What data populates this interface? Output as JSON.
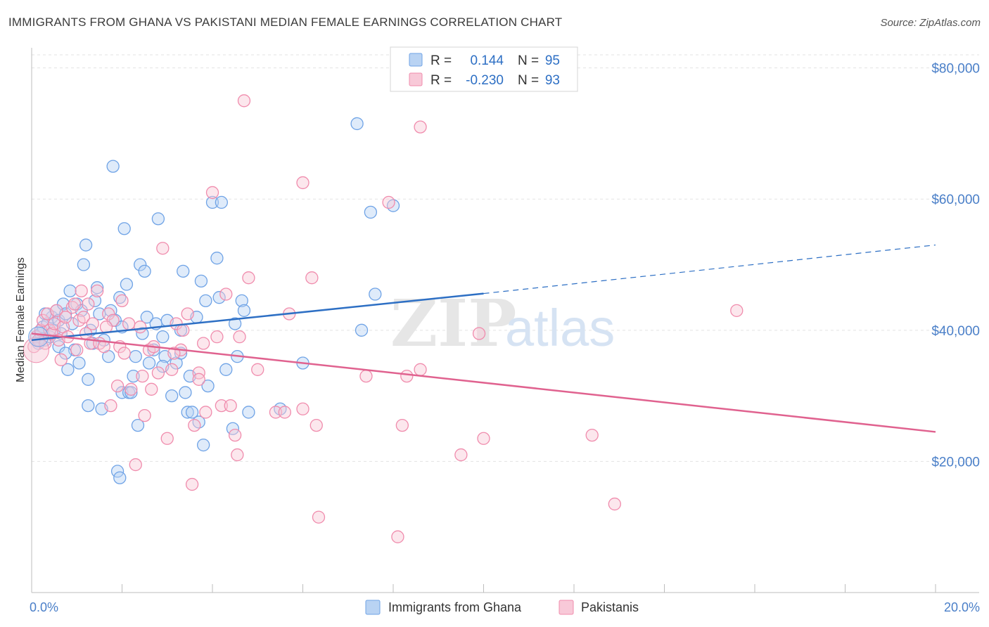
{
  "title": "IMMIGRANTS FROM GHANA VS PAKISTANI MEDIAN FEMALE EARNINGS CORRELATION CHART",
  "source": "Source: ZipAtlas.com",
  "watermark": {
    "zip": "ZIP",
    "atlas": "atlas"
  },
  "chart_data": {
    "type": "scatter",
    "ylabel": "Median Female Earnings",
    "xlim": [
      0,
      20
    ],
    "ylim": [
      0,
      82000
    ],
    "x_tick_labels": [
      "0.0%",
      "20.0%"
    ],
    "y_ticks": [
      20000,
      40000,
      60000,
      80000
    ],
    "y_tick_labels": [
      "$20,000",
      "$40,000",
      "$60,000",
      "$80,000"
    ],
    "grid": true,
    "legend_position": "top-center",
    "stats": [
      {
        "r_label": "R =",
        "r_value": "0.144",
        "n_label": "N =",
        "n_value": "95"
      },
      {
        "r_label": "R =",
        "r_value": "-0.230",
        "n_label": "N =",
        "n_value": "93"
      }
    ],
    "series": [
      {
        "name": "Immigrants from Ghana",
        "color": "#6fa3e6",
        "fill": "#b9d3f3",
        "line_color": "#2d6fc4",
        "trend": {
          "x0": 0,
          "y0": 38500,
          "x1": 10,
          "y1": 45600,
          "dash_to_x": 20,
          "dash_to_y": 53000
        },
        "points": [
          [
            0.15,
            38000
          ],
          [
            0.2,
            39500
          ],
          [
            0.25,
            40500
          ],
          [
            0.3,
            38500
          ],
          [
            0.35,
            41000
          ],
          [
            0.4,
            39000
          ],
          [
            0.45,
            42000
          ],
          [
            0.5,
            40000
          ],
          [
            0.55,
            43000
          ],
          [
            0.6,
            41500
          ],
          [
            0.65,
            39500
          ],
          [
            0.7,
            44000
          ],
          [
            0.75,
            42500
          ],
          [
            0.8,
            34000
          ],
          [
            0.85,
            46000
          ],
          [
            0.9,
            41000
          ],
          [
            0.95,
            37000
          ],
          [
            1.0,
            44000
          ],
          [
            1.05,
            35000
          ],
          [
            1.1,
            43000
          ],
          [
            1.15,
            50000
          ],
          [
            1.2,
            53000
          ],
          [
            1.25,
            32500
          ],
          [
            1.3,
            40000
          ],
          [
            1.35,
            38000
          ],
          [
            1.4,
            44500
          ],
          [
            1.5,
            42500
          ],
          [
            1.55,
            28000
          ],
          [
            1.6,
            38500
          ],
          [
            1.7,
            36000
          ],
          [
            1.75,
            43000
          ],
          [
            1.8,
            65000
          ],
          [
            1.85,
            41500
          ],
          [
            1.9,
            18500
          ],
          [
            1.95,
            17500
          ],
          [
            2.0,
            30500
          ],
          [
            2.05,
            55500
          ],
          [
            2.1,
            47000
          ],
          [
            2.15,
            30500
          ],
          [
            2.2,
            30500
          ],
          [
            2.25,
            33000
          ],
          [
            2.3,
            36000
          ],
          [
            2.35,
            25500
          ],
          [
            2.4,
            50000
          ],
          [
            2.45,
            39500
          ],
          [
            2.5,
            49000
          ],
          [
            2.55,
            42000
          ],
          [
            2.6,
            35000
          ],
          [
            2.7,
            37000
          ],
          [
            2.75,
            41000
          ],
          [
            2.8,
            57000
          ],
          [
            2.9,
            39000
          ],
          [
            2.95,
            36000
          ],
          [
            3.0,
            41500
          ],
          [
            3.1,
            30000
          ],
          [
            3.2,
            35000
          ],
          [
            3.3,
            40000
          ],
          [
            3.35,
            49000
          ],
          [
            3.4,
            30500
          ],
          [
            3.45,
            27500
          ],
          [
            3.5,
            33000
          ],
          [
            3.55,
            27500
          ],
          [
            3.65,
            42000
          ],
          [
            3.7,
            26000
          ],
          [
            3.75,
            47500
          ],
          [
            3.8,
            22500
          ],
          [
            3.85,
            44500
          ],
          [
            3.9,
            31500
          ],
          [
            4.0,
            59500
          ],
          [
            4.1,
            51000
          ],
          [
            4.15,
            45000
          ],
          [
            4.2,
            59500
          ],
          [
            4.3,
            34000
          ],
          [
            4.45,
            25000
          ],
          [
            4.5,
            41000
          ],
          [
            4.55,
            36000
          ],
          [
            4.65,
            44500
          ],
          [
            4.7,
            43000
          ],
          [
            4.8,
            27500
          ],
          [
            5.5,
            28000
          ],
          [
            6.0,
            35000
          ],
          [
            7.2,
            71500
          ],
          [
            7.3,
            40000
          ],
          [
            7.5,
            58000
          ],
          [
            7.6,
            45500
          ],
          [
            8.0,
            59000
          ],
          [
            0.3,
            42500
          ],
          [
            1.25,
            28500
          ],
          [
            2.0,
            40500
          ],
          [
            0.6,
            37500
          ],
          [
            1.45,
            46500
          ],
          [
            2.9,
            34500
          ],
          [
            0.75,
            36500
          ],
          [
            3.3,
            36500
          ],
          [
            1.95,
            45000
          ]
        ]
      },
      {
        "name": "Pakistanis",
        "color": "#f08cad",
        "fill": "#f8c9d8",
        "line_color": "#e0628f",
        "trend": {
          "x0": 0,
          "y0": 39500,
          "x1": 20,
          "y1": 24500
        },
        "points": [
          [
            0.05,
            37500
          ],
          [
            0.1,
            39000
          ],
          [
            0.15,
            38500
          ],
          [
            0.2,
            40000
          ],
          [
            0.25,
            41500
          ],
          [
            0.3,
            38000
          ],
          [
            0.35,
            42500
          ],
          [
            0.4,
            40000
          ],
          [
            0.45,
            39500
          ],
          [
            0.5,
            41000
          ],
          [
            0.55,
            43000
          ],
          [
            0.6,
            38500
          ],
          [
            0.7,
            40500
          ],
          [
            0.75,
            42000
          ],
          [
            0.8,
            39000
          ],
          [
            0.9,
            43500
          ],
          [
            1.0,
            37000
          ],
          [
            1.05,
            41500
          ],
          [
            1.1,
            46000
          ],
          [
            1.15,
            42000
          ],
          [
            1.2,
            39500
          ],
          [
            1.3,
            38000
          ],
          [
            1.35,
            41000
          ],
          [
            1.45,
            46000
          ],
          [
            1.5,
            38000
          ],
          [
            1.6,
            37500
          ],
          [
            1.7,
            42500
          ],
          [
            1.75,
            28500
          ],
          [
            1.8,
            41500
          ],
          [
            1.9,
            31500
          ],
          [
            1.95,
            37500
          ],
          [
            2.0,
            44500
          ],
          [
            2.05,
            36500
          ],
          [
            2.15,
            41000
          ],
          [
            2.3,
            19500
          ],
          [
            2.4,
            40500
          ],
          [
            2.5,
            27000
          ],
          [
            2.6,
            37000
          ],
          [
            2.65,
            31000
          ],
          [
            2.7,
            37500
          ],
          [
            2.8,
            33500
          ],
          [
            2.9,
            52500
          ],
          [
            3.0,
            23500
          ],
          [
            3.1,
            34000
          ],
          [
            3.2,
            41000
          ],
          [
            3.3,
            37000
          ],
          [
            3.35,
            40000
          ],
          [
            3.45,
            42500
          ],
          [
            3.55,
            16500
          ],
          [
            3.6,
            25500
          ],
          [
            3.7,
            33500
          ],
          [
            3.8,
            38000
          ],
          [
            3.85,
            27500
          ],
          [
            4.0,
            61000
          ],
          [
            4.1,
            39000
          ],
          [
            4.2,
            28500
          ],
          [
            4.3,
            45500
          ],
          [
            4.4,
            28500
          ],
          [
            4.5,
            24000
          ],
          [
            4.55,
            21000
          ],
          [
            4.6,
            39000
          ],
          [
            4.7,
            75000
          ],
          [
            4.8,
            48000
          ],
          [
            5.0,
            34000
          ],
          [
            5.4,
            27500
          ],
          [
            5.6,
            27500
          ],
          [
            5.7,
            42500
          ],
          [
            6.0,
            62500
          ],
          [
            6.0,
            28000
          ],
          [
            6.2,
            48000
          ],
          [
            6.3,
            25500
          ],
          [
            6.35,
            11500
          ],
          [
            7.4,
            33000
          ],
          [
            7.9,
            59500
          ],
          [
            8.1,
            8500
          ],
          [
            8.2,
            25500
          ],
          [
            8.3,
            33000
          ],
          [
            8.6,
            34000
          ],
          [
            8.6,
            71000
          ],
          [
            9.5,
            21000
          ],
          [
            9.9,
            39500
          ],
          [
            10.0,
            23500
          ],
          [
            12.4,
            24000
          ],
          [
            12.9,
            13500
          ],
          [
            15.6,
            43000
          ],
          [
            0.65,
            35500
          ],
          [
            1.25,
            44000
          ],
          [
            2.2,
            31000
          ],
          [
            3.15,
            36500
          ],
          [
            3.7,
            32500
          ],
          [
            0.95,
            44000
          ],
          [
            1.65,
            40500
          ],
          [
            2.45,
            33000
          ]
        ]
      }
    ]
  }
}
